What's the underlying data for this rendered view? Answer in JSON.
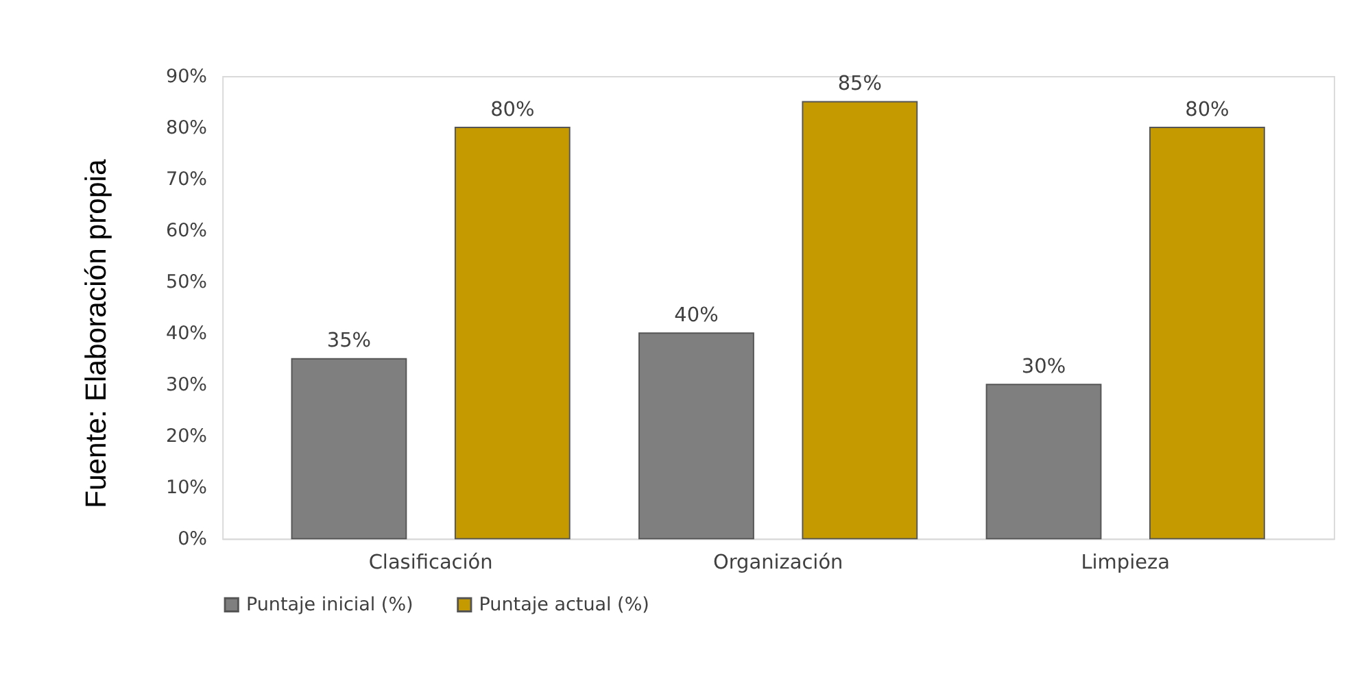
{
  "chart_data": {
    "type": "bar",
    "categories": [
      "Clasificación",
      "Organización",
      "Limpieza"
    ],
    "series": [
      {
        "name": "Puntaje inicial (%)",
        "color": "#7f7f7f",
        "values": [
          35,
          40,
          30
        ],
        "value_labels": [
          "35%",
          "40%",
          "30%"
        ]
      },
      {
        "name": "Puntaje actual (%)",
        "color": "#c49a00",
        "values": [
          80,
          85,
          80
        ],
        "value_labels": [
          "80%",
          "85%",
          "80%"
        ]
      }
    ],
    "ylim": [
      0,
      90
    ],
    "yticks": [
      {
        "value": 0,
        "label": "0%"
      },
      {
        "value": 10,
        "label": "10%"
      },
      {
        "value": 20,
        "label": "20%"
      },
      {
        "value": 30,
        "label": "30%"
      },
      {
        "value": 40,
        "label": "40%"
      },
      {
        "value": 50,
        "label": "50%"
      },
      {
        "value": 60,
        "label": "60%"
      },
      {
        "value": 70,
        "label": "70%"
      },
      {
        "value": 80,
        "label": "80%"
      },
      {
        "value": 90,
        "label": "90%"
      }
    ],
    "grid": false,
    "legend": "bottom",
    "annotations": [
      "Fuente: Elaboración propia"
    ]
  }
}
